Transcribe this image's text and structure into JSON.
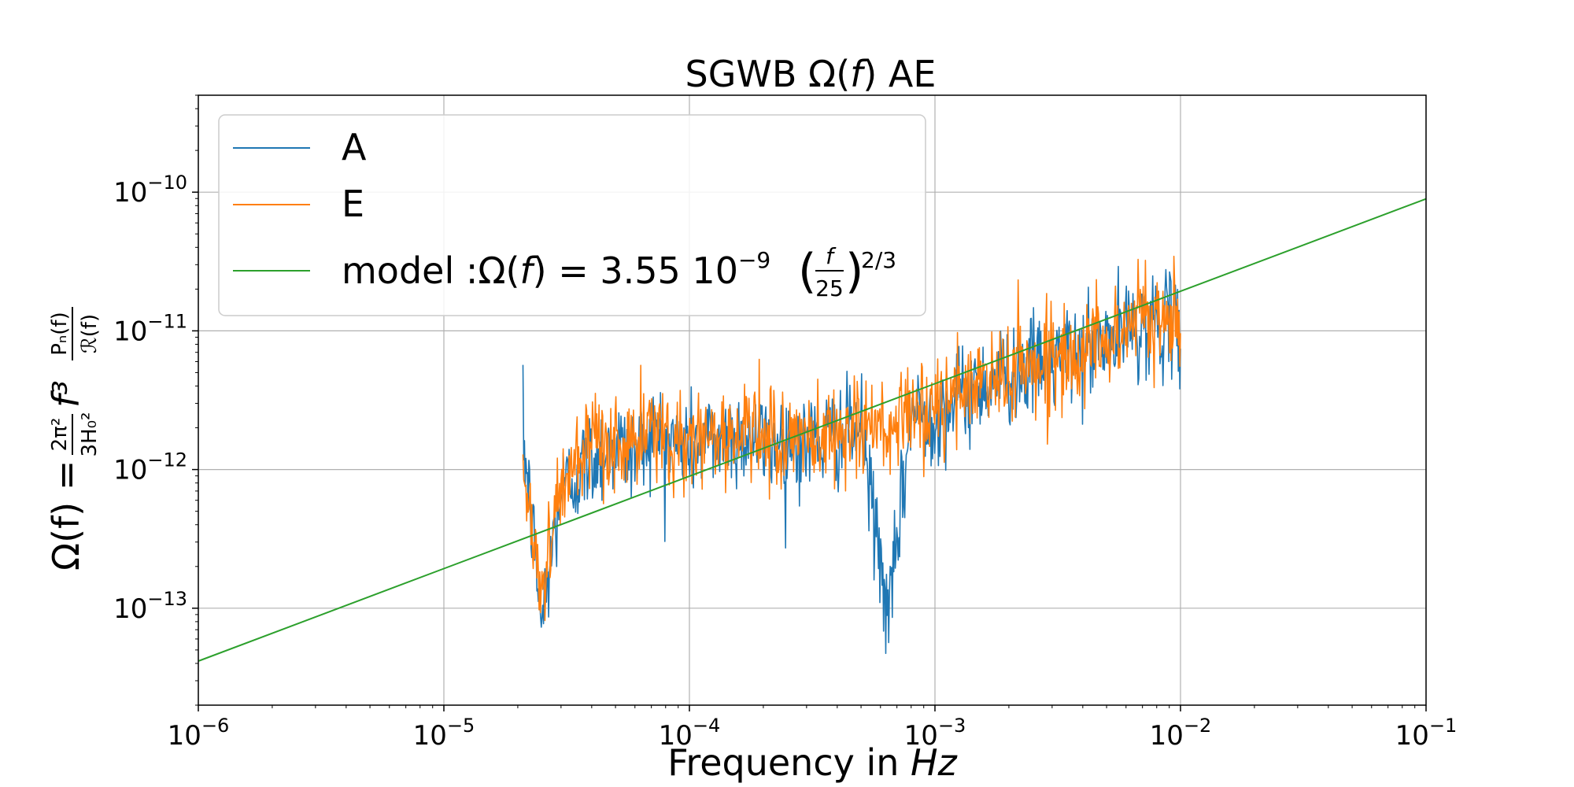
{
  "chart_data": {
    "type": "line",
    "title": "SGWB Ω(f) AE",
    "xlabel": "Frequency in Hz",
    "ylabel": "Ω(f) = (2π²/3H₀²) f³ Pₙ(f)/ℛ(f)",
    "xscale": "log",
    "yscale": "log",
    "xlim": [
      1e-06,
      0.1
    ],
    "ylim": [
      2e-14,
      5e-10
    ],
    "grid": true,
    "legend_position": "top-left",
    "x_tick_labels": [
      {
        "value": 1e-06,
        "base": "10",
        "exp": "−6"
      },
      {
        "value": 1e-05,
        "base": "10",
        "exp": "−5"
      },
      {
        "value": 0.0001,
        "base": "10",
        "exp": "−4"
      },
      {
        "value": 0.001,
        "base": "10",
        "exp": "−3"
      },
      {
        "value": 0.01,
        "base": "10",
        "exp": "−2"
      },
      {
        "value": 0.1,
        "base": "10",
        "exp": "−1"
      }
    ],
    "y_tick_labels": [
      {
        "value": 1e-13,
        "base": "10",
        "exp": "−13"
      },
      {
        "value": 1e-12,
        "base": "10",
        "exp": "−12"
      },
      {
        "value": 1e-11,
        "base": "10",
        "exp": "−11"
      },
      {
        "value": 1e-10,
        "base": "10",
        "exp": "−10"
      }
    ],
    "series": [
      {
        "name": "A",
        "color": "#1f77b4",
        "x_range": [
          2.1e-05,
          0.01
        ],
        "x": [
          2.1e-05,
          2.5e-05,
          3e-05,
          4e-05,
          5e-05,
          6e-05,
          7e-05,
          8e-05,
          0.0001,
          0.00015,
          0.0002,
          0.0003,
          0.0004,
          0.0005,
          0.00065,
          0.0008,
          0.001,
          0.0015,
          0.002,
          0.003,
          0.004,
          0.005,
          0.006,
          0.008,
          0.01
        ],
        "y": [
          1.8e-12,
          8e-14,
          7e-13,
          1.2e-12,
          1.5e-12,
          1.3e-12,
          1.9e-12,
          1.6e-12,
          1.5e-12,
          1.8e-12,
          1.6e-12,
          1.5e-12,
          1.8e-12,
          2e-12,
          8e-14,
          2.5e-12,
          2.5e-12,
          4e-12,
          5e-12,
          6e-12,
          7e-12,
          8e-12,
          1e-11,
          1.2e-11,
          1e-11
        ]
      },
      {
        "name": "E",
        "color": "#ff7f0e",
        "x_range": [
          2.1e-05,
          0.01
        ],
        "x": [
          2.1e-05,
          2.5e-05,
          3e-05,
          4e-05,
          5e-05,
          6e-05,
          7e-05,
          8e-05,
          0.0001,
          0.00015,
          0.0002,
          0.0003,
          0.0004,
          0.0005,
          0.00065,
          0.0008,
          0.001,
          0.0015,
          0.002,
          0.003,
          0.004,
          0.005,
          0.006,
          0.008,
          0.01
        ],
        "y": [
          1e-12,
          1.4e-13,
          8e-13,
          1.3e-12,
          1.6e-12,
          1.4e-12,
          2e-12,
          1.7e-12,
          1.6e-12,
          1.9e-12,
          1.7e-12,
          1.6e-12,
          1.9e-12,
          2.1e-12,
          1.8e-12,
          2.6e-12,
          2.6e-12,
          4.2e-12,
          5.2e-12,
          6.2e-12,
          7.2e-12,
          8.4e-12,
          1.1e-11,
          1.3e-11,
          1.1e-11
        ]
      },
      {
        "name": "model",
        "color": "#2ca02c",
        "x": [
          1e-06,
          1e-05,
          0.0001,
          0.001,
          0.01,
          0.1
        ],
        "y": [
          4.16e-14,
          1.93e-13,
          8.95e-13,
          4.16e-12,
          1.93e-11,
          8.95e-11
        ]
      }
    ],
    "legend": {
      "a_label": "A",
      "e_label": "E",
      "model_prefix": "model :Ω(",
      "model_f": "f",
      "model_mid": ") = 3.55 10",
      "model_exp": "−9",
      "model_frac_num": "f",
      "model_frac_den": "25",
      "model_power": "2/3"
    },
    "title_parts": {
      "pre": "SGWB Ω(",
      "f": "f",
      "post": ") AE"
    },
    "xlabel_parts": {
      "pre": "Frequency in ",
      "unit": "Hz"
    },
    "ylabel_parts": {
      "lhs": "Ω(f) = ",
      "coef_num": "2π²",
      "coef_den": "3H₀²",
      "f3": "f³",
      "ratio_num": "Pₙ(f)",
      "ratio_den": "ℛ(f)"
    }
  }
}
